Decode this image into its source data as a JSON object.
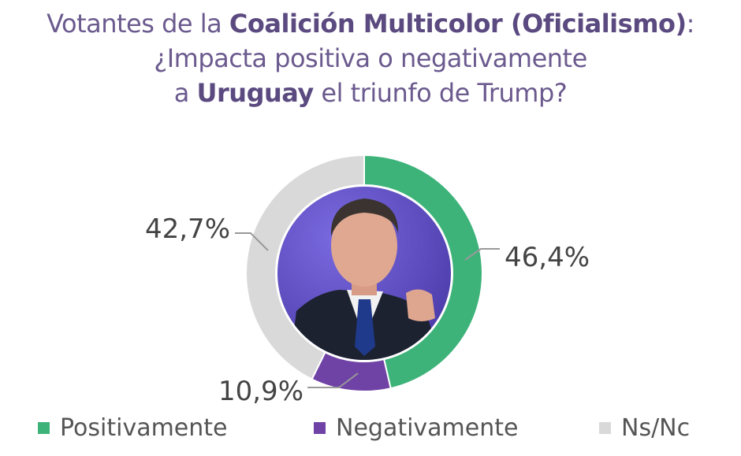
{
  "chart_data": {
    "type": "pie",
    "donut": true,
    "title_lines": [
      [
        {
          "text": "Votantes de la ",
          "bold": false
        },
        {
          "text": "Coalición Multicolor (Oficialismo)",
          "bold": true
        },
        {
          "text": ":",
          "bold": false
        }
      ],
      [
        {
          "text": "¿Impacta positiva o negativamente",
          "bold": false
        }
      ],
      [
        {
          "text": "a ",
          "bold": false
        },
        {
          "text": "Uruguay",
          "bold": true
        },
        {
          "text": " el triunfo de Trump?",
          "bold": false
        }
      ]
    ],
    "center_image": "photo of a man in a dark suit and blue tie speaking, purple background",
    "slices": [
      {
        "name": "Positivamente",
        "value": 46.4,
        "label": "46,4%",
        "color": "#3db37a"
      },
      {
        "name": "Negativamente",
        "value": 10.9,
        "label": "10,9%",
        "color": "#6f42a5"
      },
      {
        "name": "Ns/Nc",
        "value": 42.7,
        "label": "42,7%",
        "color": "#d9d9d9"
      }
    ],
    "start_angle_deg": 0,
    "direction": "clockwise",
    "legend_position": "bottom"
  },
  "colors": {
    "title": "#6b5a8e",
    "title_bold": "#5b4a80",
    "label_text": "#444444",
    "leader_line": "#999999",
    "photo_bg": "#5f4dc6"
  }
}
